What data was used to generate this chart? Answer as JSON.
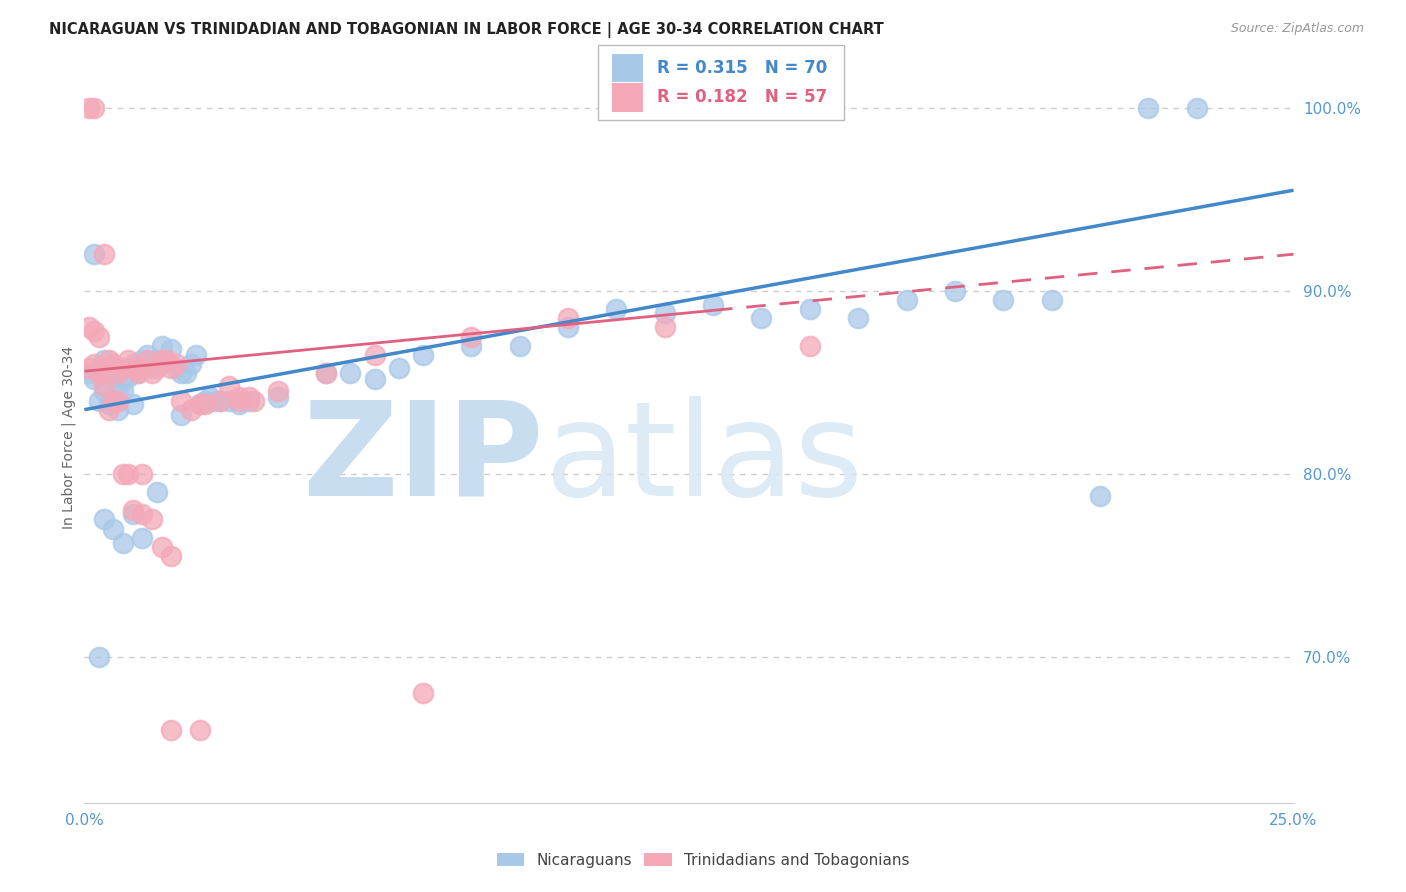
{
  "title": "NICARAGUAN VS TRINIDADIAN AND TOBAGONIAN IN LABOR FORCE | AGE 30-34 CORRELATION CHART",
  "source": "Source: ZipAtlas.com",
  "ylabel": "In Labor Force | Age 30-34",
  "xlim": [
    0.0,
    0.25
  ],
  "ylim": [
    0.62,
    1.02
  ],
  "legend_r_blue": "R = 0.315",
  "legend_n_blue": "N = 70",
  "legend_r_pink": "R = 0.182",
  "legend_n_pink": "N = 57",
  "legend_label_blue": "Nicaraguans",
  "legend_label_pink": "Trinidadians and Tobagonians",
  "blue_color": "#a8c8e8",
  "pink_color": "#f4a8b8",
  "trend_blue_color": "#4488cc",
  "trend_pink_color": "#e06080",
  "blue_scatter_x": [
    0.001,
    0.002,
    0.003,
    0.003,
    0.004,
    0.004,
    0.005,
    0.005,
    0.006,
    0.006,
    0.007,
    0.007,
    0.008,
    0.008,
    0.009,
    0.01,
    0.01,
    0.011,
    0.012,
    0.013,
    0.014,
    0.015,
    0.016,
    0.017,
    0.018,
    0.019,
    0.02,
    0.021,
    0.022,
    0.023,
    0.024,
    0.025,
    0.026,
    0.027,
    0.028,
    0.03,
    0.032,
    0.034,
    0.04,
    0.05,
    0.055,
    0.06,
    0.065,
    0.07,
    0.08,
    0.09,
    0.1,
    0.11,
    0.12,
    0.13,
    0.14,
    0.15,
    0.16,
    0.17,
    0.18,
    0.19,
    0.2,
    0.21,
    0.22,
    0.23,
    0.002,
    0.004,
    0.006,
    0.008,
    0.01,
    0.012,
    0.003,
    0.007,
    0.015,
    0.02
  ],
  "blue_scatter_y": [
    0.855,
    0.852,
    0.858,
    0.84,
    0.862,
    0.845,
    0.855,
    0.838,
    0.855,
    0.84,
    0.858,
    0.845,
    0.852,
    0.845,
    0.853,
    0.86,
    0.838,
    0.855,
    0.862,
    0.865,
    0.858,
    0.862,
    0.87,
    0.862,
    0.868,
    0.858,
    0.855,
    0.855,
    0.86,
    0.865,
    0.838,
    0.84,
    0.842,
    0.84,
    0.84,
    0.84,
    0.838,
    0.84,
    0.842,
    0.855,
    0.855,
    0.852,
    0.858,
    0.865,
    0.87,
    0.87,
    0.88,
    0.89,
    0.888,
    0.892,
    0.885,
    0.89,
    0.885,
    0.895,
    0.9,
    0.895,
    0.895,
    0.788,
    1.0,
    1.0,
    0.92,
    0.775,
    0.77,
    0.762,
    0.778,
    0.765,
    0.7,
    0.835,
    0.79,
    0.832
  ],
  "pink_scatter_x": [
    0.001,
    0.001,
    0.002,
    0.002,
    0.003,
    0.003,
    0.004,
    0.004,
    0.005,
    0.005,
    0.006,
    0.006,
    0.007,
    0.007,
    0.008,
    0.009,
    0.01,
    0.011,
    0.012,
    0.013,
    0.014,
    0.015,
    0.016,
    0.017,
    0.018,
    0.019,
    0.02,
    0.022,
    0.024,
    0.03,
    0.032,
    0.034,
    0.008,
    0.009,
    0.012,
    0.01,
    0.012,
    0.014,
    0.016,
    0.018,
    0.15,
    0.07,
    0.001,
    0.002,
    0.004,
    0.018,
    0.024,
    0.12,
    0.1,
    0.08,
    0.06,
    0.05,
    0.04,
    0.035,
    0.025,
    0.028,
    0.032
  ],
  "pink_scatter_y": [
    0.858,
    0.88,
    0.86,
    0.878,
    0.855,
    0.875,
    0.855,
    0.848,
    0.862,
    0.835,
    0.86,
    0.84,
    0.855,
    0.84,
    0.858,
    0.862,
    0.858,
    0.855,
    0.858,
    0.862,
    0.855,
    0.858,
    0.862,
    0.862,
    0.858,
    0.86,
    0.84,
    0.835,
    0.838,
    0.848,
    0.84,
    0.842,
    0.8,
    0.8,
    0.8,
    0.78,
    0.778,
    0.775,
    0.76,
    0.755,
    0.87,
    0.68,
    1.0,
    1.0,
    0.92,
    0.66,
    0.66,
    0.88,
    0.885,
    0.875,
    0.865,
    0.855,
    0.845,
    0.84,
    0.838,
    0.84,
    0.842
  ],
  "trend_blue_x0": 0.0,
  "trend_blue_y0": 0.835,
  "trend_blue_x1": 0.25,
  "trend_blue_y1": 0.955,
  "trend_pink_x0": 0.0,
  "trend_pink_y0": 0.856,
  "trend_pink_x1": 0.25,
  "trend_pink_y1": 0.92
}
